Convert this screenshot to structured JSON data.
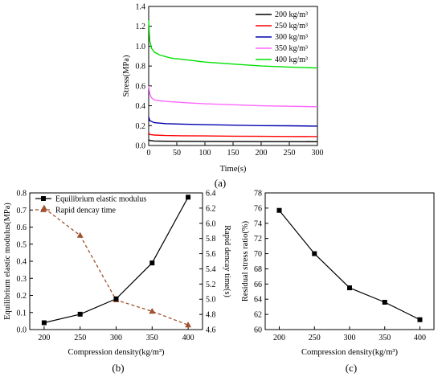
{
  "chart_data": [
    {
      "type": "line",
      "label": "(a)",
      "xlabel": "Time(s)",
      "ylabel": "Stress(MPa)",
      "xlim": [
        0,
        300
      ],
      "ylim": [
        0,
        1.4
      ],
      "xticks": [
        "0",
        "50",
        "100",
        "150",
        "200",
        "250",
        "300"
      ],
      "yticks": [
        "0.0",
        "0.2",
        "0.4",
        "0.6",
        "0.8",
        "1.0",
        "1.2",
        "1.4"
      ],
      "legend_position": "top-right",
      "series": [
        {
          "name": "200 kg/m³",
          "color": "#000000",
          "x": [
            0,
            2,
            10,
            30,
            60,
            100,
            150,
            200,
            250,
            300
          ],
          "y": [
            0.06,
            0.05,
            0.045,
            0.043,
            0.042,
            0.041,
            0.04,
            0.039,
            0.039,
            0.038
          ]
        },
        {
          "name": "250 kg/m³",
          "color": "#ff0000",
          "x": [
            0,
            2,
            10,
            30,
            60,
            100,
            150,
            200,
            250,
            300
          ],
          "y": [
            0.13,
            0.11,
            0.105,
            0.1,
            0.098,
            0.096,
            0.094,
            0.092,
            0.091,
            0.09
          ]
        },
        {
          "name": "300 kg/m³",
          "color": "#0000b0",
          "x": [
            0,
            2,
            10,
            30,
            60,
            100,
            150,
            200,
            250,
            300
          ],
          "y": [
            0.29,
            0.25,
            0.23,
            0.22,
            0.215,
            0.21,
            0.205,
            0.2,
            0.198,
            0.195
          ]
        },
        {
          "name": "350 kg/m³",
          "color": "#ff66ff",
          "x": [
            0,
            2,
            5,
            10,
            20,
            40,
            70,
            100,
            150,
            200,
            250,
            300
          ],
          "y": [
            0.6,
            0.52,
            0.48,
            0.46,
            0.45,
            0.44,
            0.43,
            0.42,
            0.41,
            0.4,
            0.395,
            0.39
          ]
        },
        {
          "name": "400 kg/m³",
          "color": "#00e000",
          "x": [
            0,
            2,
            5,
            10,
            20,
            40,
            70,
            100,
            150,
            200,
            250,
            300
          ],
          "y": [
            1.26,
            1.05,
            0.98,
            0.94,
            0.91,
            0.88,
            0.86,
            0.84,
            0.82,
            0.8,
            0.79,
            0.78
          ]
        }
      ]
    },
    {
      "type": "line",
      "label": "(b)",
      "xlabel": "Compression density(kg/m³)",
      "ylabel": "Equilibrium elastic modulus(MPa)",
      "ylabel_right": "Rapid dencay time(s)",
      "xlim": [
        180,
        420
      ],
      "ylim": [
        0,
        0.8
      ],
      "ylim_right": [
        4.6,
        6.4
      ],
      "xticks": [
        "200",
        "250",
        "300",
        "350",
        "400"
      ],
      "yticks": [
        "0.0",
        "0.1",
        "0.2",
        "0.3",
        "0.4",
        "0.5",
        "0.6",
        "0.7",
        "0.8"
      ],
      "yticks_right": [
        "4.6",
        "4.8",
        "5.0",
        "5.2",
        "5.4",
        "5.6",
        "5.8",
        "6.0",
        "6.2",
        "6.4"
      ],
      "legend_position": "top-left",
      "x": [
        200,
        250,
        300,
        350,
        400
      ],
      "series": [
        {
          "name": "Equilibrium elastic modulus",
          "color": "#000000",
          "axis": "left",
          "marker": "square",
          "values": [
            0.04,
            0.09,
            0.18,
            0.39,
            0.775
          ]
        },
        {
          "name": "Rapid dencay time",
          "color": "#a0522d",
          "axis": "right",
          "marker": "triangle",
          "values": [
            6.2,
            5.84,
            4.99,
            4.84,
            4.66
          ]
        }
      ]
    },
    {
      "type": "line",
      "label": "(c)",
      "xlabel": "Compression density(kg/m³)",
      "ylabel": "Residual stress ratio(%)",
      "xlim": [
        180,
        420
      ],
      "ylim": [
        60,
        78
      ],
      "xticks": [
        "200",
        "250",
        "300",
        "350",
        "400"
      ],
      "yticks": [
        "60",
        "62",
        "64",
        "66",
        "68",
        "70",
        "72",
        "74",
        "76",
        "78"
      ],
      "x": [
        200,
        250,
        300,
        350,
        400
      ],
      "series": [
        {
          "name": "",
          "color": "#000000",
          "marker": "square",
          "values": [
            75.7,
            70.0,
            65.5,
            63.6,
            61.3
          ]
        }
      ]
    }
  ]
}
